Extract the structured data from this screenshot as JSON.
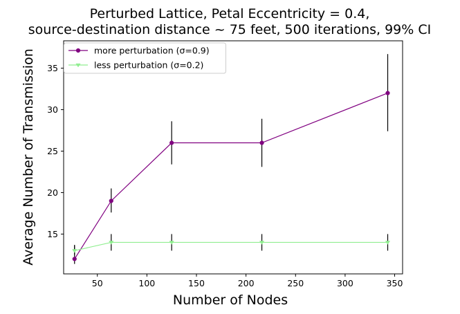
{
  "chart_data": {
    "type": "line",
    "title_lines": [
      "Perturbed Lattice, Petal Eccentricity = 0.4,",
      "source-destination distance ~ 75 feet, 500 iterations, 99% CI"
    ],
    "xlabel": "Number of Nodes",
    "ylabel": "Average Number of Transmission",
    "xlim": [
      16,
      358
    ],
    "ylim": [
      10.2,
      38.3
    ],
    "xticks": [
      50,
      100,
      150,
      200,
      250,
      300,
      350
    ],
    "yticks": [
      15,
      20,
      25,
      30,
      35
    ],
    "legend_position": "top-left",
    "grid": false,
    "series": [
      {
        "name": "more perturbation (σ=0.9)",
        "color": "#800080",
        "marker": "circle",
        "x": [
          27,
          64,
          125,
          216,
          343
        ],
        "y": [
          12,
          19,
          26,
          26,
          32
        ],
        "err_low": [
          11.4,
          17.6,
          23.4,
          23.1,
          27.4
        ],
        "err_high": [
          13.7,
          20.5,
          28.6,
          28.9,
          36.7
        ]
      },
      {
        "name": "less perturbation (σ=0.2)",
        "color": "#90ee90",
        "marker": "triangle-down",
        "x": [
          27,
          64,
          125,
          216,
          343
        ],
        "y": [
          13,
          14,
          14,
          14,
          14
        ],
        "err_low": [
          12.5,
          13,
          13,
          13,
          13
        ],
        "err_high": [
          13.6,
          15,
          15,
          15,
          15
        ]
      }
    ]
  }
}
